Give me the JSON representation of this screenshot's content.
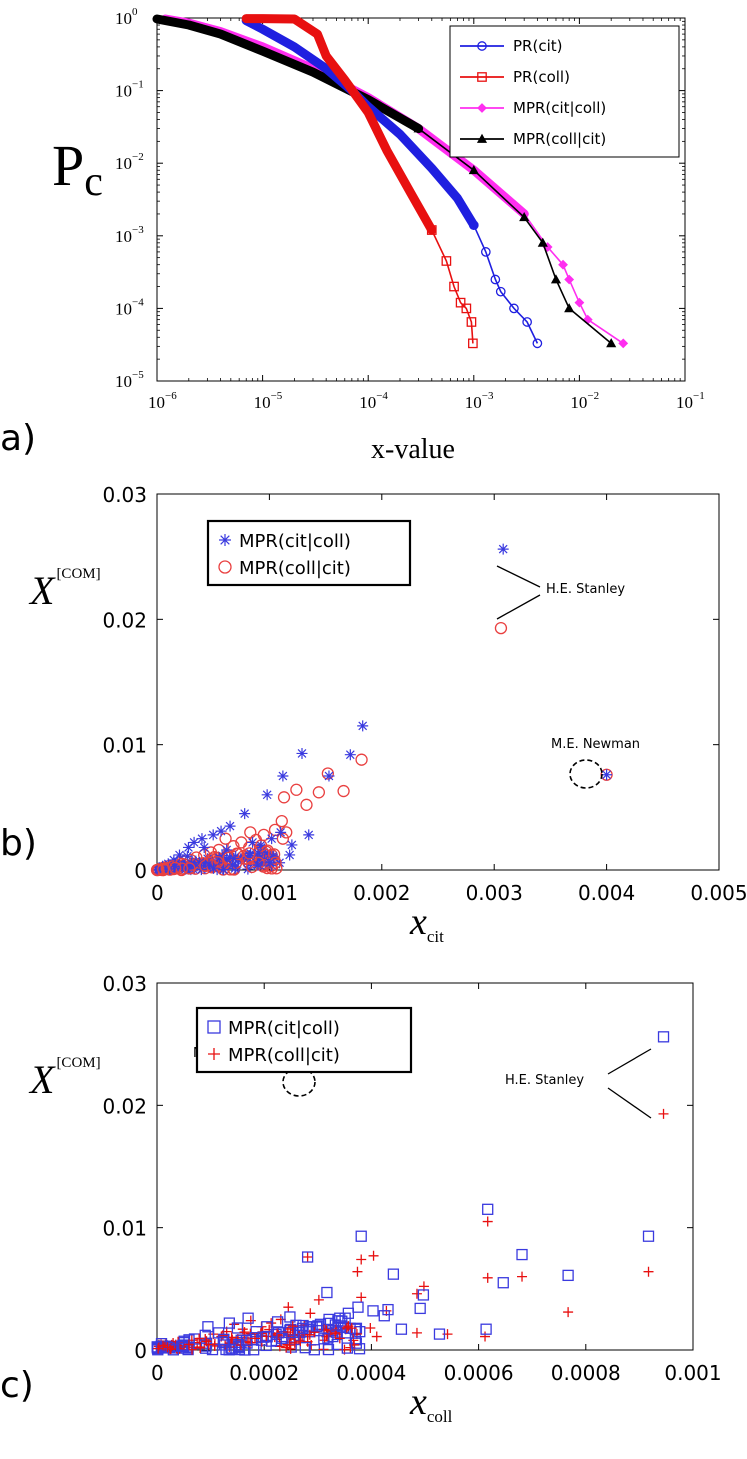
{
  "panels": [
    {
      "label": "a)"
    },
    {
      "label": "b)"
    },
    {
      "label": "c)"
    }
  ],
  "chart_data": [
    {
      "type": "line",
      "xlabel": "x-value",
      "ylabel": "P",
      "ylabel_sub": "c",
      "xscale": "log",
      "yscale": "log",
      "xlim": [
        1e-06,
        0.1
      ],
      "ylim": [
        1e-05,
        1
      ],
      "xticks": [
        {
          "base": "10",
          "exp": "−6",
          "v": 1e-06
        },
        {
          "base": "10",
          "exp": "−5",
          "v": 1e-05
        },
        {
          "base": "10",
          "exp": "−4",
          "v": 0.0001
        },
        {
          "base": "10",
          "exp": "−3",
          "v": 0.001
        },
        {
          "base": "10",
          "exp": "−2",
          "v": 0.01
        },
        {
          "base": "10",
          "exp": "−1",
          "v": 0.1
        }
      ],
      "yticks": [
        {
          "base": "10",
          "exp": "0",
          "v": 1
        },
        {
          "base": "10",
          "exp": "−1",
          "v": 0.1
        },
        {
          "base": "10",
          "exp": "−2",
          "v": 0.01
        },
        {
          "base": "10",
          "exp": "−3",
          "v": 0.001
        },
        {
          "base": "10",
          "exp": "−4",
          "v": 0.0001
        },
        {
          "base": "10",
          "exp": "−5",
          "v": 1e-05
        }
      ],
      "legend_position": "top-right",
      "series": [
        {
          "name": "PR(cit)",
          "color": "#1f1fe0",
          "marker": "circle",
          "x": [
            7e-06,
            1e-05,
            2e-05,
            4e-05,
            7e-05,
            0.0001,
            0.0002,
            0.0004,
            0.0007,
            0.001,
            0.0013,
            0.0016,
            0.0018,
            0.0024,
            0.0032,
            0.004
          ],
          "y": [
            0.92,
            0.7,
            0.4,
            0.2,
            0.1,
            0.06,
            0.025,
            0.0085,
            0.0033,
            0.0014,
            0.0006,
            0.00025,
            0.00017,
            0.0001,
            6.5e-05,
            3.3e-05
          ]
        },
        {
          "name": "PR(coll)",
          "color": "#e81010",
          "marker": "square",
          "x": [
            7e-06,
            1e-05,
            2e-05,
            3.3e-05,
            4e-05,
            6e-05,
            0.0001,
            0.00015,
            0.00025,
            0.0004,
            0.00055,
            0.00065,
            0.00075,
            0.00085,
            0.00095,
            0.00098
          ],
          "y": [
            0.98,
            0.98,
            0.97,
            0.6,
            0.3,
            0.14,
            0.05,
            0.015,
            0.004,
            0.0012,
            0.00045,
            0.0002,
            0.00012,
            0.0001,
            6.5e-05,
            3.3e-05
          ]
        },
        {
          "name": "MPR(cit|coll)",
          "color": "#ff2ef0",
          "marker": "diamond",
          "x": [
            1.2e-06,
            2e-06,
            4e-06,
            1e-05,
            3e-05,
            0.0001,
            0.0003,
            0.001,
            0.003,
            0.005,
            0.007,
            0.008,
            0.01,
            0.012,
            0.026
          ],
          "y": [
            0.97,
            0.85,
            0.65,
            0.4,
            0.2,
            0.08,
            0.03,
            0.008,
            0.002,
            0.0007,
            0.0004,
            0.00025,
            0.00012,
            7e-05,
            3.3e-05
          ]
        },
        {
          "name": "MPR(coll|cit)",
          "color": "#000000",
          "marker": "triangle",
          "x": [
            1e-06,
            2e-06,
            4e-06,
            1e-05,
            3e-05,
            0.0001,
            0.0003,
            0.001,
            0.003,
            0.0045,
            0.006,
            0.008,
            0.02
          ],
          "y": [
            0.97,
            0.8,
            0.6,
            0.35,
            0.18,
            0.075,
            0.03,
            0.008,
            0.0018,
            0.0008,
            0.00025,
            0.0001,
            3.3e-05
          ]
        }
      ]
    },
    {
      "type": "scatter",
      "xlabel": "x",
      "xlabel_sub": "cit",
      "ylabel": "X",
      "ylabel_sup": "[COM]",
      "xlim": [
        0,
        0.005
      ],
      "ylim": [
        0,
        0.03
      ],
      "xticks": [
        "0",
        "0.001",
        "0.002",
        "0.003",
        "0.004",
        "0.005"
      ],
      "yticks": [
        "0",
        "0.01",
        "0.02",
        "0.03"
      ],
      "legend_position": "top-left",
      "annotations": [
        {
          "text": "H.E. Stanley",
          "x": 0.0039,
          "y": 0.0225
        },
        {
          "text": "M.E. Newman",
          "x": 0.004,
          "y": 0.0098
        }
      ],
      "series": [
        {
          "name": "MPR(cit|coll)",
          "color": "#3a3adf",
          "marker": "asterisk",
          "points": [
            [
              0.00308,
              0.0256
            ],
            [
              0.004,
              0.0076
            ],
            [
              0.00183,
              0.0115
            ],
            [
              0.00172,
              0.0092
            ],
            [
              0.00153,
              0.0075
            ],
            [
              0.00129,
              0.0093
            ],
            [
              0.00112,
              0.0075
            ],
            [
              0.00098,
              0.006
            ],
            [
              0.00078,
              0.0045
            ],
            [
              0.00065,
              0.0035
            ],
            [
              0.0005,
              0.0028
            ],
            [
              0.0004,
              0.0025
            ],
            [
              0.00033,
              0.0022
            ],
            [
              0.00028,
              0.0018
            ],
            [
              0.0002,
              0.0012
            ],
            [
              0.00015,
              0.0008
            ],
            [
              0.0001,
              0.0005
            ],
            [
              5e-05,
              0.0003
            ],
            [
              3e-05,
              0.0001
            ],
            [
              0.00062,
              0.0016
            ],
            [
              0.00085,
              0.0022
            ],
            [
              0.0011,
              0.003
            ],
            [
              0.00118,
              0.0012
            ],
            [
              0.0009,
              0.0005
            ],
            [
              0.0007,
              0.0011
            ],
            [
              0.00045,
              0.0009
            ],
            [
              0.00035,
              0.0006
            ],
            [
              0.00022,
              0.0004
            ],
            [
              0.00012,
              0.0002
            ],
            [
              0.00055,
              0.0005
            ],
            [
              0.00075,
              0.0008
            ],
            [
              0.00095,
              0.0014
            ],
            [
              0.00102,
              0.0025
            ],
            [
              0.00135,
              0.0028
            ],
            [
              0.0012,
              0.002
            ],
            [
              0.00057,
              0.0031
            ],
            [
              0.00042,
              0.0018
            ],
            [
              0.00027,
              0.0011
            ],
            [
              0.00018,
              0.0007
            ],
            [
              8e-05,
              0.0003
            ]
          ]
        },
        {
          "name": "MPR(coll|cit)",
          "color": "#e94040",
          "marker": "circle",
          "points": [
            [
              0.00306,
              0.0193
            ],
            [
              0.004,
              0.0076
            ],
            [
              0.00182,
              0.0088
            ],
            [
              0.00166,
              0.0063
            ],
            [
              0.00152,
              0.0077
            ],
            [
              0.00144,
              0.0062
            ],
            [
              0.00133,
              0.0052
            ],
            [
              0.00124,
              0.0064
            ],
            [
              0.00113,
              0.0058
            ],
            [
              0.00111,
              0.0039
            ],
            [
              0.00115,
              0.003
            ],
            [
              0.00112,
              0.0025
            ],
            [
              0.00105,
              0.0032
            ],
            [
              0.00095,
              0.0028
            ],
            [
              0.00088,
              0.0024
            ],
            [
              0.00082,
              0.0018
            ],
            [
              0.00075,
              0.0022
            ],
            [
              0.00068,
              0.0019
            ],
            [
              0.00061,
              0.0025
            ],
            [
              0.00055,
              0.0016
            ],
            [
              0.00048,
              0.0014
            ],
            [
              0.00042,
              0.0012
            ],
            [
              0.00035,
              0.001
            ],
            [
              0.0003,
              0.0008
            ],
            [
              0.00025,
              0.0007
            ],
            [
              0.0002,
              0.0006
            ],
            [
              0.00015,
              0.0004
            ],
            [
              0.0001,
              0.0003
            ],
            [
              6e-05,
              0.0002
            ],
            [
              3e-05,
              0.0001
            ],
            [
              0.00078,
              0.0009
            ],
            [
              0.00062,
              0.0011
            ],
            [
              0.00092,
              0.0015
            ],
            [
              0.00102,
              0.0012
            ],
            [
              0.00071,
              0.0013
            ],
            [
              0.00052,
              0.0008
            ],
            [
              0.00038,
              0.0005
            ],
            [
              0.00022,
              0.0003
            ],
            [
              0.00012,
              0.0002
            ],
            [
              0.00083,
              0.003
            ]
          ]
        }
      ]
    },
    {
      "type": "scatter",
      "xlabel": "x",
      "xlabel_sub": "coll",
      "ylabel": "X",
      "ylabel_sup": "[COM]",
      "xlim": [
        0,
        0.001
      ],
      "ylim": [
        0,
        0.03
      ],
      "xticks": [
        "0",
        "0.0002",
        "0.0004",
        "0.0006",
        "0.0008",
        "0.001"
      ],
      "yticks": [
        "0",
        "0.01",
        "0.02",
        "0.03"
      ],
      "legend_position": "top-left",
      "annotations": [
        {
          "text": "H.E. Stanley",
          "x": 0.00083,
          "y": 0.0225
        },
        {
          "text": "M.E. Newman",
          "x": 0.00028,
          "y": 0.0102
        }
      ],
      "series": [
        {
          "name": "MPR(cit|coll)",
          "color": "#3a3adf",
          "marker": "square",
          "points": [
            [
              0.000945,
              0.0256
            ],
            [
              0.000281,
              0.0076
            ],
            [
              0.000617,
              0.0115
            ],
            [
              0.000917,
              0.0093
            ],
            [
              0.000381,
              0.0093
            ],
            [
              0.000681,
              0.0078
            ],
            [
              0.000767,
              0.0061
            ],
            [
              0.000441,
              0.0062
            ],
            [
              0.000646,
              0.0055
            ],
            [
              0.000317,
              0.0047
            ],
            [
              0.000497,
              0.0045
            ],
            [
              0.000491,
              0.0034
            ],
            [
              0.000431,
              0.0033
            ],
            [
              0.000424,
              0.0028
            ],
            [
              0.000403,
              0.0032
            ],
            [
              0.000375,
              0.0035
            ],
            [
              0.000357,
              0.003
            ],
            [
              0.000341,
              0.0026
            ],
            [
              0.000321,
              0.0025
            ],
            [
              0.000614,
              0.0017
            ],
            [
              0.000527,
              0.0013
            ],
            [
              0.000456,
              0.0017
            ],
            [
              0.00037,
              0.0017
            ],
            [
              0.000355,
              0.0014
            ],
            [
              0.000305,
              0.0021
            ],
            [
              0.000285,
              0.0019
            ],
            [
              0.000248,
              0.0027
            ],
            [
              0.000225,
              0.0023
            ],
            [
              0.000205,
              0.0019
            ],
            [
              0.000185,
              0.0015
            ],
            [
              0.00017,
              0.0026
            ],
            [
              0.00015,
              0.0018
            ],
            [
              0.000135,
              0.0022
            ],
            [
              0.000115,
              0.0014
            ],
            [
              9e-05,
              0.0012
            ],
            [
              7e-05,
              0.0009
            ],
            [
              5e-05,
              0.0006
            ],
            [
              3e-05,
              0.0003
            ],
            [
              0.000265,
              0.0012
            ],
            [
              0.000195,
              0.0008
            ],
            [
              0.000125,
              0.0006
            ],
            [
              0.000328,
              0.0011
            ],
            [
              9.5e-05,
              0.0019
            ],
            [
              0.000233,
              0.0011
            ]
          ]
        },
        {
          "name": "MPR(coll|cit)",
          "color": "#e81010",
          "marker": "plus",
          "points": [
            [
              0.000945,
              0.0193
            ],
            [
              0.000281,
              0.0076
            ],
            [
              0.000617,
              0.0105
            ],
            [
              0.000917,
              0.0064
            ],
            [
              0.000381,
              0.0074
            ],
            [
              0.000404,
              0.0077
            ],
            [
              0.000681,
              0.006
            ],
            [
              0.000617,
              0.0059
            ],
            [
              0.000767,
              0.0031
            ],
            [
              0.000498,
              0.0052
            ],
            [
              0.000485,
              0.0046
            ],
            [
              0.000428,
              0.0032
            ],
            [
              0.000374,
              0.0064
            ],
            [
              0.000381,
              0.0043
            ],
            [
              0.000302,
              0.0041
            ],
            [
              0.000286,
              0.003
            ],
            [
              0.000245,
              0.0035
            ],
            [
              0.000231,
              0.0025
            ],
            [
              0.000213,
              0.0022
            ],
            [
              0.000195,
              0.0019
            ],
            [
              0.000175,
              0.0024
            ],
            [
              0.00016,
              0.0017
            ],
            [
              0.000144,
              0.0021
            ],
            [
              0.00013,
              0.0015
            ],
            [
              0.00012,
              0.0011
            ],
            [
              0.000105,
              0.0013
            ],
            [
              9e-05,
              0.0009
            ],
            [
              7.5e-05,
              0.0006
            ],
            [
              6e-05,
              0.0004
            ],
            [
              4.5e-05,
              0.0003
            ],
            [
              3e-05,
              0.0002
            ],
            [
              0.000542,
              0.0013
            ],
            [
              0.000612,
              0.0011
            ],
            [
              0.000485,
              0.0014
            ],
            [
              0.000398,
              0.0018
            ],
            [
              0.000352,
              0.0017
            ],
            [
              0.000336,
              0.0013
            ],
            [
              0.000316,
              0.0011
            ],
            [
              0.000264,
              0.0012
            ],
            [
              0.00025,
              0.0009
            ],
            [
              0.000205,
              0.0007
            ],
            [
              0.000158,
              0.0008
            ],
            [
              0.000108,
              0.0005
            ],
            [
              6.5e-05,
              0.0008
            ],
            [
              0.000195,
              0.0014
            ],
            [
              0.00041,
              0.0011
            ]
          ]
        }
      ]
    }
  ]
}
